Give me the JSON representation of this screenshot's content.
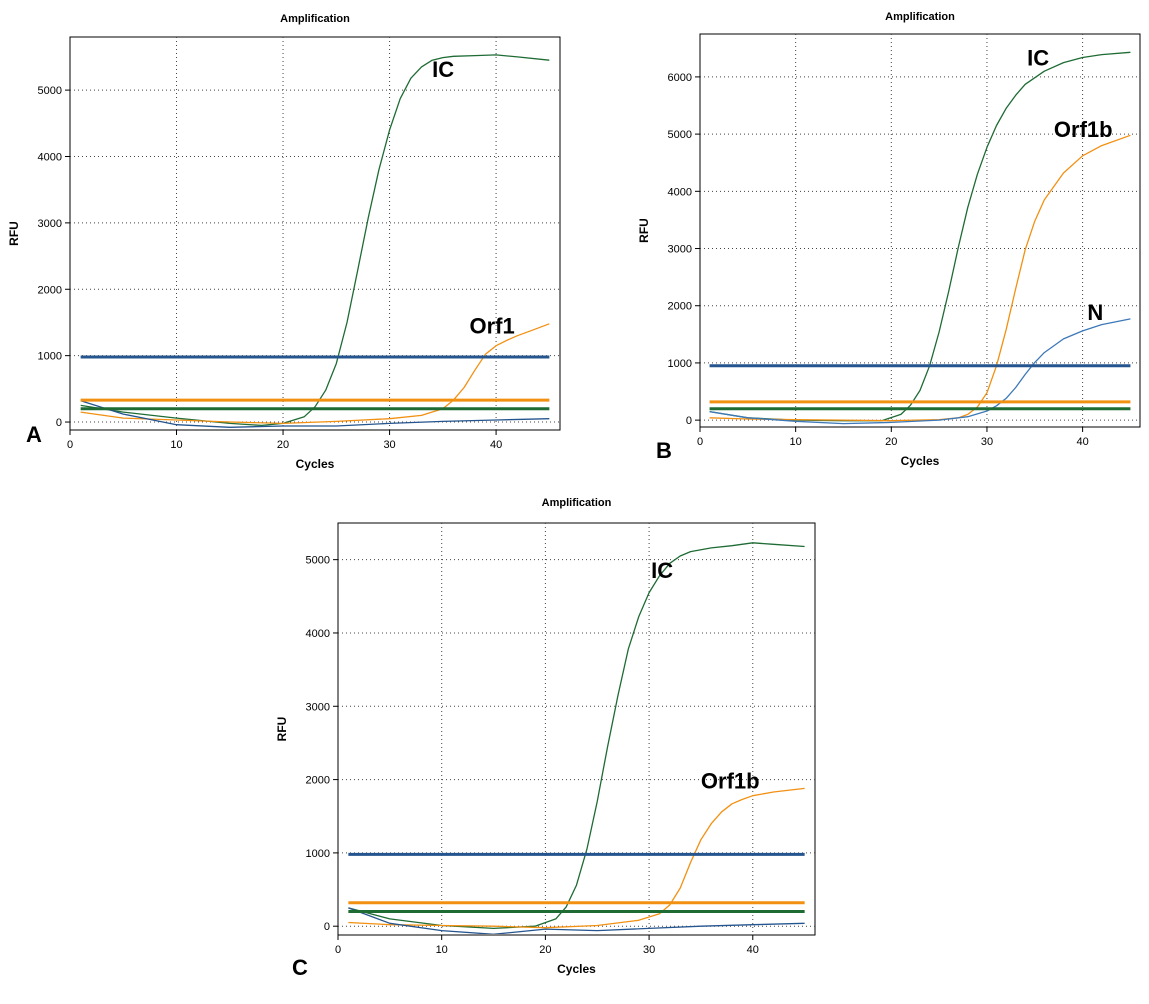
{
  "chart_data": [
    {
      "type": "line",
      "panel_letter": "A",
      "title": "Amplification",
      "xlabel": "Cycles",
      "ylabel": "RFU",
      "xlim": [
        0,
        46
      ],
      "ylim": [
        -120,
        5800
      ],
      "xticks": [
        0,
        10,
        20,
        30,
        40
      ],
      "yticks": [
        0,
        1000,
        2000,
        3000,
        4000,
        5000
      ],
      "grid": true,
      "series": [
        {
          "name": "IC",
          "color": "#1e6b34",
          "kind": "curve",
          "x": [
            1,
            5,
            10,
            15,
            18,
            20,
            22,
            23,
            24,
            25,
            26,
            27,
            28,
            29,
            30,
            31,
            32,
            33,
            34,
            35,
            36,
            38,
            40,
            42,
            45
          ],
          "y": [
            250,
            150,
            60,
            -20,
            -50,
            -20,
            80,
            230,
            480,
            880,
            1500,
            2280,
            3080,
            3800,
            4400,
            4870,
            5180,
            5350,
            5450,
            5490,
            5510,
            5520,
            5530,
            5500,
            5450
          ]
        },
        {
          "name": "Orf1",
          "color": "#f29012",
          "kind": "curve",
          "x": [
            1,
            5,
            10,
            15,
            20,
            25,
            30,
            33,
            35,
            36,
            37,
            38,
            39,
            40,
            41,
            42,
            43,
            44,
            45
          ],
          "y": [
            150,
            60,
            30,
            0,
            -20,
            10,
            50,
            100,
            200,
            330,
            520,
            780,
            1020,
            1150,
            1230,
            1300,
            1360,
            1420,
            1480
          ]
        },
        {
          "name": "",
          "color": "#25558e",
          "kind": "curve",
          "x": [
            1,
            5,
            10,
            15,
            20,
            25,
            30,
            35,
            40,
            45
          ],
          "y": [
            320,
            120,
            -40,
            -80,
            -60,
            -60,
            -20,
            10,
            30,
            50
          ]
        },
        {
          "name": "",
          "color": "#25558e",
          "kind": "threshold",
          "y": 980
        },
        {
          "name": "",
          "color": "#f29012",
          "kind": "threshold",
          "y": 330
        },
        {
          "name": "",
          "color": "#1e6b34",
          "kind": "threshold",
          "y": 200
        }
      ],
      "annotations": [
        {
          "text": "IC",
          "x": 34.0,
          "y": 5200
        },
        {
          "text": "Orf1",
          "x": 37.5,
          "y": 1330
        }
      ]
    },
    {
      "type": "line",
      "panel_letter": "B",
      "title": "Amplification",
      "xlabel": "Cycles",
      "ylabel": "RFU",
      "xlim": [
        0,
        46
      ],
      "ylim": [
        -120,
        6750
      ],
      "xticks": [
        0,
        10,
        20,
        30,
        40
      ],
      "yticks": [
        0,
        1000,
        2000,
        3000,
        4000,
        5000,
        6000
      ],
      "grid": true,
      "series": [
        {
          "name": "IC",
          "color": "#1e6b34",
          "kind": "curve",
          "x": [
            1,
            5,
            10,
            15,
            19,
            21,
            22,
            23,
            24,
            25,
            26,
            27,
            28,
            29,
            30,
            31,
            32,
            33,
            34,
            36,
            38,
            40,
            42,
            45
          ],
          "y": [
            150,
            40,
            0,
            -10,
            -10,
            100,
            260,
            520,
            950,
            1540,
            2250,
            3020,
            3720,
            4300,
            4770,
            5150,
            5450,
            5680,
            5870,
            6100,
            6250,
            6340,
            6390,
            6430
          ]
        },
        {
          "name": "Orf1b",
          "color": "#f29012",
          "kind": "curve",
          "x": [
            1,
            5,
            10,
            15,
            20,
            25,
            27,
            28,
            29,
            30,
            31,
            32,
            33,
            34,
            35,
            36,
            38,
            40,
            42,
            45
          ],
          "y": [
            40,
            20,
            10,
            0,
            -10,
            10,
            40,
            100,
            230,
            480,
            950,
            1580,
            2300,
            2980,
            3480,
            3850,
            4320,
            4620,
            4800,
            4980
          ]
        },
        {
          "name": "N",
          "color": "#3d78b8",
          "kind": "curve",
          "x": [
            1,
            5,
            10,
            15,
            20,
            25,
            28,
            30,
            31,
            32,
            33,
            34,
            35,
            36,
            38,
            40,
            42,
            45
          ],
          "y": [
            150,
            40,
            -20,
            -60,
            -40,
            0,
            60,
            160,
            250,
            380,
            570,
            800,
            1010,
            1180,
            1420,
            1560,
            1670,
            1770
          ]
        },
        {
          "name": "",
          "color": "#25558e",
          "kind": "threshold",
          "y": 950
        },
        {
          "name": "",
          "color": "#f29012",
          "kind": "threshold",
          "y": 320
        },
        {
          "name": "",
          "color": "#1e6b34",
          "kind": "threshold",
          "y": 200
        }
      ],
      "annotations": [
        {
          "text": "IC",
          "x": 34.2,
          "y": 6200
        },
        {
          "text": "Orf1b",
          "x": 37.0,
          "y": 4950
        },
        {
          "text": "N",
          "x": 40.5,
          "y": 1750
        }
      ]
    },
    {
      "type": "line",
      "panel_letter": "C",
      "title": "Amplification",
      "xlabel": "Cycles",
      "ylabel": "RFU",
      "xlim": [
        0,
        46
      ],
      "ylim": [
        -120,
        5500
      ],
      "xticks": [
        0,
        10,
        20,
        30,
        40
      ],
      "yticks": [
        0,
        1000,
        2000,
        3000,
        4000,
        5000
      ],
      "grid": true,
      "series": [
        {
          "name": "IC",
          "color": "#1e6b34",
          "kind": "curve",
          "x": [
            1,
            5,
            10,
            15,
            19,
            21,
            22,
            23,
            24,
            25,
            26,
            27,
            28,
            29,
            30,
            31,
            32,
            33,
            34,
            36,
            38,
            40,
            42,
            45
          ],
          "y": [
            250,
            100,
            10,
            -30,
            0,
            100,
            260,
            560,
            1050,
            1700,
            2450,
            3150,
            3780,
            4220,
            4550,
            4780,
            4950,
            5050,
            5110,
            5160,
            5190,
            5230,
            5210,
            5180
          ]
        },
        {
          "name": "Orf1b",
          "color": "#f29012",
          "kind": "curve",
          "x": [
            1,
            5,
            10,
            15,
            20,
            25,
            29,
            31,
            32,
            33,
            34,
            35,
            36,
            37,
            38,
            39,
            40,
            42,
            45
          ],
          "y": [
            50,
            20,
            10,
            0,
            -20,
            10,
            80,
            170,
            290,
            520,
            870,
            1180,
            1400,
            1560,
            1670,
            1730,
            1780,
            1830,
            1880
          ]
        },
        {
          "name": "",
          "color": "#25558e",
          "kind": "curve",
          "x": [
            1,
            5,
            10,
            15,
            20,
            25,
            30,
            35,
            40,
            45
          ],
          "y": [
            250,
            40,
            -60,
            -110,
            -40,
            -60,
            -30,
            0,
            20,
            40
          ]
        },
        {
          "name": "",
          "color": "#25558e",
          "kind": "threshold",
          "y": 980
        },
        {
          "name": "",
          "color": "#f29012",
          "kind": "threshold",
          "y": 320
        },
        {
          "name": "",
          "color": "#1e6b34",
          "kind": "threshold",
          "y": 200
        }
      ],
      "annotations": [
        {
          "text": "IC",
          "x": 30.2,
          "y": 4750
        },
        {
          "text": "Orf1b",
          "x": 35.0,
          "y": 1880
        }
      ]
    }
  ]
}
